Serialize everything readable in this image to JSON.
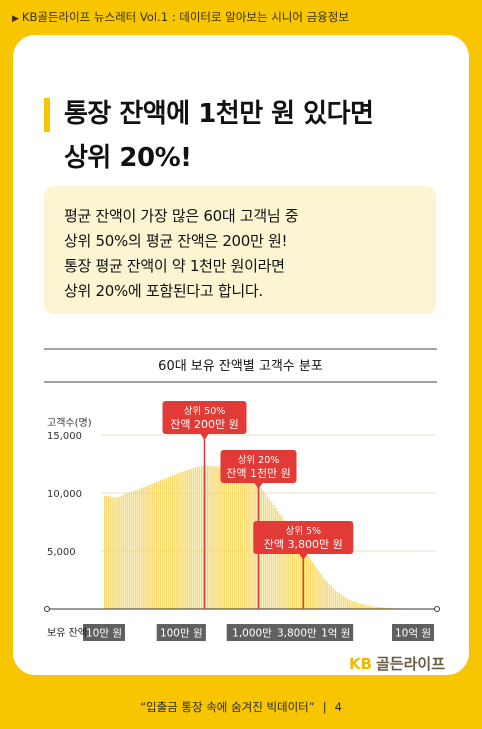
{
  "header": {
    "text": "KB골든라이프 뉴스레터 Vol.1 : 데이터로 알아보는 시니어 금융정보"
  },
  "title": {
    "lines": [
      "통장 잔액에 1천만 원 있다면",
      "상위 20%!"
    ]
  },
  "note": {
    "lines": [
      "평균 잔액이 가장 많은 60대 고객님 중",
      "상위 50%의 평균 잔액은 200만 원!",
      "통장 평균 잔액이 약 1천만 원이라면",
      "상위 20%에 포함된다고 합니다."
    ]
  },
  "brand": {
    "kb": "KB",
    "name": "골든라이프"
  },
  "footer": {
    "quote": "“입출금 통장 속에 숨겨진 빅데이터”",
    "page": "4"
  },
  "colors": {
    "background": "#f7c600",
    "bars": "#f9d96a",
    "marker": "#e23a36",
    "axis_label_bg": "#606060",
    "brand_kb": "#f2b705",
    "brand_name": "#6b5a45"
  },
  "chart_data": {
    "type": "bar",
    "title": "60대 보유 잔액별 고객수 분포",
    "ylabel": "고객수(명)",
    "xlabel": "보유 잔액",
    "x_scale": "log",
    "xlim": [
      100000,
      1000000000
    ],
    "ylim": [
      0,
      17000
    ],
    "grid": true,
    "yticks": [
      {
        "value": 5000,
        "label": "5,000"
      },
      {
        "value": 10000,
        "label": "10,000"
      },
      {
        "value": 15000,
        "label": "15,000"
      }
    ],
    "xticks": [
      {
        "value": 100000,
        "label": "10만 원"
      },
      {
        "value": 1000000,
        "label": "100만 원"
      },
      {
        "value": 10000000,
        "label": "1,000만 원"
      },
      {
        "value": 38000000,
        "label": "3,800만 원"
      },
      {
        "value": 100000000,
        "label": "1억 원"
      },
      {
        "value": 1000000000,
        "label": "10억 원"
      }
    ],
    "series": [
      {
        "x": [
          100000,
          150000,
          200000,
          300000,
          500000,
          700000,
          1000000,
          1500000,
          2000000,
          3000000,
          5000000,
          7000000,
          10000000,
          15000000,
          20000000,
          30000000,
          38000000,
          50000000,
          70000000,
          100000000,
          150000000,
          200000000,
          300000000,
          500000000,
          1000000000
        ],
        "values": [
          9800,
          9600,
          10000,
          10400,
          11000,
          11400,
          11800,
          12200,
          12400,
          12300,
          12100,
          11800,
          10800,
          9200,
          8000,
          6300,
          5200,
          4100,
          2700,
          1600,
          800,
          500,
          200,
          80,
          20
        ]
      }
    ],
    "annotations": [
      {
        "x": 2000000,
        "line1": "상위 50%",
        "line2": "잔액 200만 원"
      },
      {
        "x": 10000000,
        "line1": "상위 20%",
        "line2": "잔액 1천만 원"
      },
      {
        "x": 38000000,
        "line1": "상위 5%",
        "line2": "잔액 3,800만 원"
      }
    ]
  }
}
